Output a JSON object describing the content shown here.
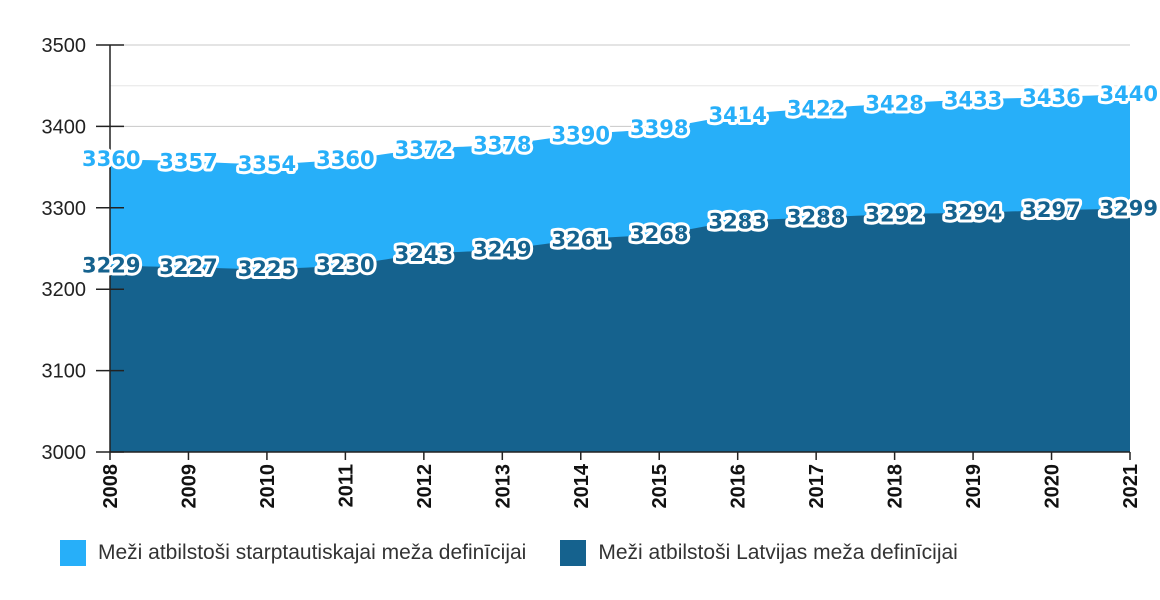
{
  "chart_data": {
    "type": "area",
    "x": [
      "2008",
      "2009",
      "2010",
      "2011",
      "2012",
      "2013",
      "2014",
      "2015",
      "2016",
      "2017",
      "2018",
      "2019",
      "2020",
      "2021"
    ],
    "ylim": [
      3000,
      3500
    ],
    "yticks": [
      3000,
      3100,
      3200,
      3300,
      3400,
      3500
    ],
    "grid": true,
    "legend_position": "bottom",
    "series": [
      {
        "name": "Meži atbilstoši starptautiskajai meža definīcijai",
        "color": "#27aff9",
        "label_color": "#27aff9",
        "values": [
          3360,
          3357,
          3354,
          3360,
          3372,
          3378,
          3390,
          3398,
          3414,
          3422,
          3428,
          3433,
          3436,
          3440
        ]
      },
      {
        "name": "Meži atbilstoši Latvijas meža definīcijai",
        "color": "#15628e",
        "label_color": "#15628e",
        "values": [
          3229,
          3227,
          3225,
          3230,
          3243,
          3249,
          3261,
          3268,
          3283,
          3288,
          3292,
          3294,
          3297,
          3299
        ]
      }
    ]
  }
}
